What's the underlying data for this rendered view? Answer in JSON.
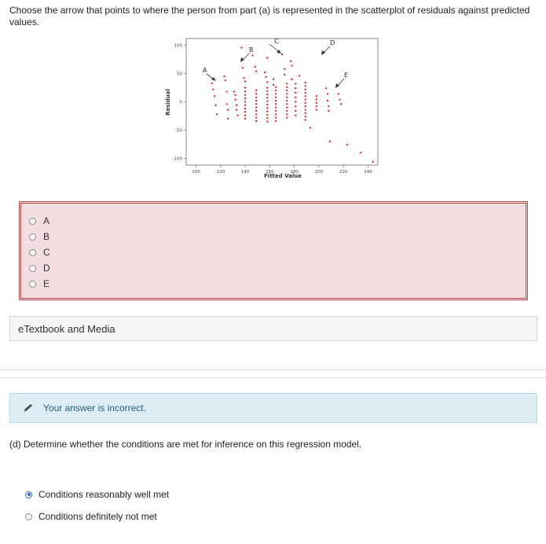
{
  "question": {
    "text": "Choose the arrow that points to where the person from part (a) is represented in the scatterplot of residuals against predicted values."
  },
  "chart_data": {
    "type": "scatter",
    "title": "",
    "xlabel": "Fitted Value",
    "ylabel": "Residual",
    "xlim": [
      92,
      248
    ],
    "ylim": [
      -112,
      112
    ],
    "xticks": [
      100,
      120,
      140,
      160,
      180,
      200,
      220,
      240
    ],
    "yticks": [
      100,
      50,
      0,
      -50,
      -100
    ],
    "point_color": "#e31b1b",
    "points": [
      [
        113,
        33
      ],
      [
        114,
        22
      ],
      [
        115,
        10
      ],
      [
        116,
        -6
      ],
      [
        117,
        -22
      ],
      [
        123,
        45
      ],
      [
        124,
        38
      ],
      [
        125,
        18
      ],
      [
        125,
        -4
      ],
      [
        126,
        -14
      ],
      [
        126,
        -30
      ],
      [
        131,
        18
      ],
      [
        132,
        12
      ],
      [
        132,
        4
      ],
      [
        133,
        -6
      ],
      [
        133,
        -14
      ],
      [
        134,
        -24
      ],
      [
        137,
        96
      ],
      [
        138,
        60
      ],
      [
        139,
        42
      ],
      [
        140,
        36
      ],
      [
        140,
        25
      ],
      [
        140,
        18
      ],
      [
        140,
        12
      ],
      [
        140,
        6
      ],
      [
        140,
        0
      ],
      [
        140,
        -6
      ],
      [
        140,
        -12
      ],
      [
        140,
        -18
      ],
      [
        140,
        -24
      ],
      [
        140,
        -30
      ],
      [
        146,
        82
      ],
      [
        148,
        62
      ],
      [
        149,
        54
      ],
      [
        149,
        20
      ],
      [
        149,
        14
      ],
      [
        149,
        8
      ],
      [
        149,
        2
      ],
      [
        149,
        -4
      ],
      [
        149,
        -10
      ],
      [
        149,
        -16
      ],
      [
        149,
        -22
      ],
      [
        149,
        -28
      ],
      [
        149,
        -34
      ],
      [
        156,
        52
      ],
      [
        157,
        44
      ],
      [
        158,
        78
      ],
      [
        158,
        35
      ],
      [
        158,
        25
      ],
      [
        158,
        19
      ],
      [
        158,
        13
      ],
      [
        158,
        7
      ],
      [
        158,
        1
      ],
      [
        158,
        -5
      ],
      [
        158,
        -11
      ],
      [
        158,
        -17
      ],
      [
        158,
        -23
      ],
      [
        158,
        -29
      ],
      [
        158,
        -35
      ],
      [
        163,
        40
      ],
      [
        163,
        30
      ],
      [
        165,
        26
      ],
      [
        165,
        20
      ],
      [
        165,
        14
      ],
      [
        165,
        8
      ],
      [
        165,
        2
      ],
      [
        165,
        -4
      ],
      [
        165,
        -10
      ],
      [
        165,
        -16
      ],
      [
        165,
        -22
      ],
      [
        165,
        -28
      ],
      [
        165,
        -34
      ],
      [
        170,
        84
      ],
      [
        172,
        58
      ],
      [
        172,
        48
      ],
      [
        174,
        32
      ],
      [
        174,
        26
      ],
      [
        174,
        20
      ],
      [
        174,
        14
      ],
      [
        174,
        8
      ],
      [
        174,
        2
      ],
      [
        174,
        -4
      ],
      [
        174,
        -10
      ],
      [
        174,
        -16
      ],
      [
        174,
        -22
      ],
      [
        174,
        -28
      ],
      [
        177,
        72
      ],
      [
        178,
        64
      ],
      [
        178,
        40
      ],
      [
        181,
        32
      ],
      [
        181,
        24
      ],
      [
        181,
        16
      ],
      [
        181,
        8
      ],
      [
        181,
        0
      ],
      [
        181,
        -8
      ],
      [
        181,
        -16
      ],
      [
        181,
        -24
      ],
      [
        184,
        46
      ],
      [
        189,
        34
      ],
      [
        189,
        28
      ],
      [
        189,
        22
      ],
      [
        189,
        16
      ],
      [
        189,
        10
      ],
      [
        189,
        4
      ],
      [
        189,
        -2
      ],
      [
        189,
        -8
      ],
      [
        189,
        -14
      ],
      [
        189,
        -20
      ],
      [
        189,
        -26
      ],
      [
        189,
        -32
      ],
      [
        193,
        -46
      ],
      [
        198,
        10
      ],
      [
        198,
        4
      ],
      [
        198,
        -2
      ],
      [
        198,
        -8
      ],
      [
        198,
        -14
      ],
      [
        206,
        24
      ],
      [
        207,
        14
      ],
      [
        207,
        2
      ],
      [
        208,
        -8
      ],
      [
        208,
        -16
      ],
      [
        209,
        -70
      ],
      [
        216,
        14
      ],
      [
        217,
        4
      ],
      [
        218,
        -4
      ],
      [
        223,
        -76
      ],
      [
        234,
        -90
      ],
      [
        244,
        -106
      ]
    ],
    "annotations": [
      "A",
      "B",
      "C",
      "D",
      "E"
    ],
    "grid": false
  },
  "choices": [
    "A",
    "B",
    "C",
    "D",
    "E"
  ],
  "ebook_label": "eTextbook and Media",
  "feedback": "Your answer is incorrect.",
  "part_d": {
    "question": "(d) Determine whether the conditions are met for inference on this regression model.",
    "options": [
      "Conditions reasonably well met",
      "Conditions definitely not met"
    ],
    "selected": 0
  }
}
